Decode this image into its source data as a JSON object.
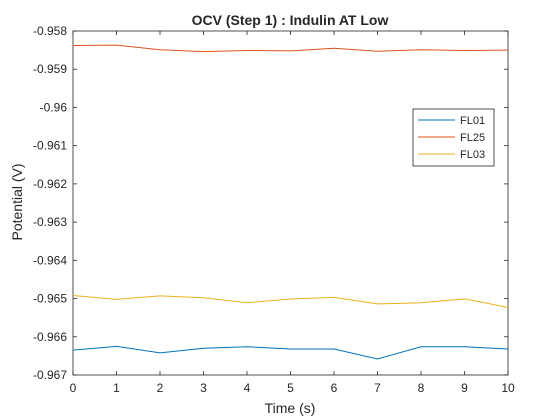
{
  "chart_data": {
    "type": "line",
    "title": "OCV (Step 1) : Indulin AT Low",
    "xlabel": "Time (s)",
    "ylabel": "Potential (V)",
    "xlim": [
      0,
      10
    ],
    "ylim": [
      -0.967,
      -0.958
    ],
    "xticks": [
      "0",
      "1",
      "2",
      "3",
      "4",
      "5",
      "6",
      "7",
      "8",
      "9",
      "10"
    ],
    "yticks": [
      "-0.958",
      "-0.959",
      "-0.96",
      "-0.961",
      "-0.962",
      "-0.963",
      "-0.964",
      "-0.965",
      "-0.966",
      "-0.967"
    ],
    "grid": false,
    "legend_position": "top-right",
    "x": [
      0,
      1,
      2,
      3,
      4,
      5,
      6,
      7,
      8,
      9,
      10
    ],
    "series": [
      {
        "name": "FL01",
        "color": "#0072BD",
        "values": [
          -0.96635,
          -0.96625,
          -0.96642,
          -0.9663,
          -0.96626,
          -0.96632,
          -0.96632,
          -0.96658,
          -0.96626,
          -0.96626,
          -0.96632
        ]
      },
      {
        "name": "FL25",
        "color": "#D95319",
        "values": [
          -0.95838,
          -0.95837,
          -0.95849,
          -0.95854,
          -0.95851,
          -0.95852,
          -0.95845,
          -0.95853,
          -0.95849,
          -0.95851,
          -0.9585
        ]
      },
      {
        "name": "FL03",
        "color": "#EDB120",
        "values": [
          -0.96492,
          -0.96502,
          -0.96493,
          -0.96498,
          -0.96511,
          -0.96501,
          -0.96497,
          -0.96514,
          -0.96511,
          -0.96501,
          -0.96523
        ]
      }
    ]
  }
}
